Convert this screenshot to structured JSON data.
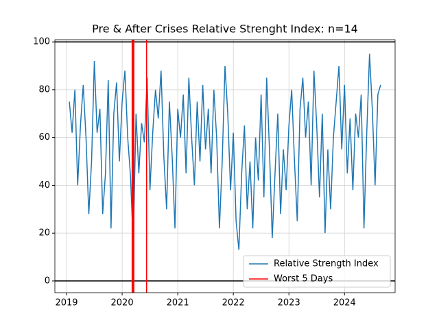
{
  "chart_data": {
    "type": "line",
    "title": "Pre & After Crises Relative Strenght Index: n=14",
    "x": [
      2019.05,
      2019.1,
      2019.15,
      2019.2,
      2019.25,
      2019.3,
      2019.35,
      2019.4,
      2019.45,
      2019.5,
      2019.55,
      2019.6,
      2019.65,
      2019.7,
      2019.75,
      2019.8,
      2019.85,
      2019.9,
      2019.95,
      2020.0,
      2020.05,
      2020.1,
      2020.15,
      2020.2,
      2020.25,
      2020.3,
      2020.35,
      2020.4,
      2020.45,
      2020.5,
      2020.55,
      2020.6,
      2020.65,
      2020.7,
      2020.75,
      2020.8,
      2020.85,
      2020.9,
      2020.95,
      2021.0,
      2021.05,
      2021.1,
      2021.15,
      2021.2,
      2021.25,
      2021.3,
      2021.35,
      2021.4,
      2021.45,
      2021.5,
      2021.55,
      2021.6,
      2021.65,
      2021.7,
      2021.75,
      2021.8,
      2021.85,
      2021.9,
      2021.95,
      2022.0,
      2022.05,
      2022.1,
      2022.15,
      2022.2,
      2022.25,
      2022.3,
      2022.35,
      2022.4,
      2022.45,
      2022.5,
      2022.55,
      2022.6,
      2022.65,
      2022.7,
      2022.75,
      2022.8,
      2022.85,
      2022.9,
      2022.95,
      2023.0,
      2023.05,
      2023.1,
      2023.15,
      2023.2,
      2023.25,
      2023.3,
      2023.35,
      2023.4,
      2023.45,
      2023.5,
      2023.55,
      2023.6,
      2023.65,
      2023.7,
      2023.75,
      2023.8,
      2023.85,
      2023.9,
      2023.95,
      2024.0,
      2024.05,
      2024.1,
      2024.15,
      2024.2,
      2024.25,
      2024.3,
      2024.35,
      2024.4,
      2024.45,
      2024.5,
      2024.55,
      2024.6,
      2024.65
    ],
    "series": [
      {
        "name": "Relative Strength Index",
        "color": "#1f77b4",
        "values": [
          75,
          62,
          80,
          40,
          65,
          82,
          60,
          28,
          50,
          92,
          62,
          72,
          28,
          45,
          84,
          22,
          70,
          83,
          50,
          75,
          88,
          60,
          44,
          15,
          70,
          45,
          66,
          58,
          85,
          38,
          62,
          80,
          68,
          88,
          52,
          30,
          75,
          52,
          22,
          72,
          60,
          78,
          45,
          85,
          60,
          40,
          75,
          50,
          82,
          55,
          72,
          45,
          80,
          60,
          22,
          50,
          90,
          70,
          38,
          62,
          25,
          13,
          45,
          65,
          30,
          50,
          22,
          60,
          42,
          78,
          35,
          85,
          55,
          18,
          45,
          70,
          28,
          55,
          38,
          65,
          80,
          50,
          25,
          72,
          85,
          60,
          75,
          40,
          88,
          65,
          35,
          70,
          20,
          55,
          30,
          60,
          75,
          90,
          55,
          82,
          45,
          68,
          38,
          70,
          60,
          78,
          22,
          62,
          95,
          72,
          40,
          78,
          82
        ]
      }
    ],
    "vlines": {
      "name": "Worst 5 Days",
      "color": "#ff0000",
      "x": [
        2020.18,
        2020.19,
        2020.2,
        2020.21,
        2020.44
      ]
    },
    "hlines": {
      "color": "#000000",
      "y": [
        0,
        100
      ]
    },
    "xlim": [
      2018.79,
      2024.91
    ],
    "xticks": [
      2019,
      2020,
      2021,
      2022,
      2023,
      2024
    ],
    "ylim": [
      -4.9,
      100.9
    ],
    "yticks": [
      0,
      20,
      40,
      60,
      80,
      100
    ],
    "grid": true,
    "legend": "lower right"
  }
}
